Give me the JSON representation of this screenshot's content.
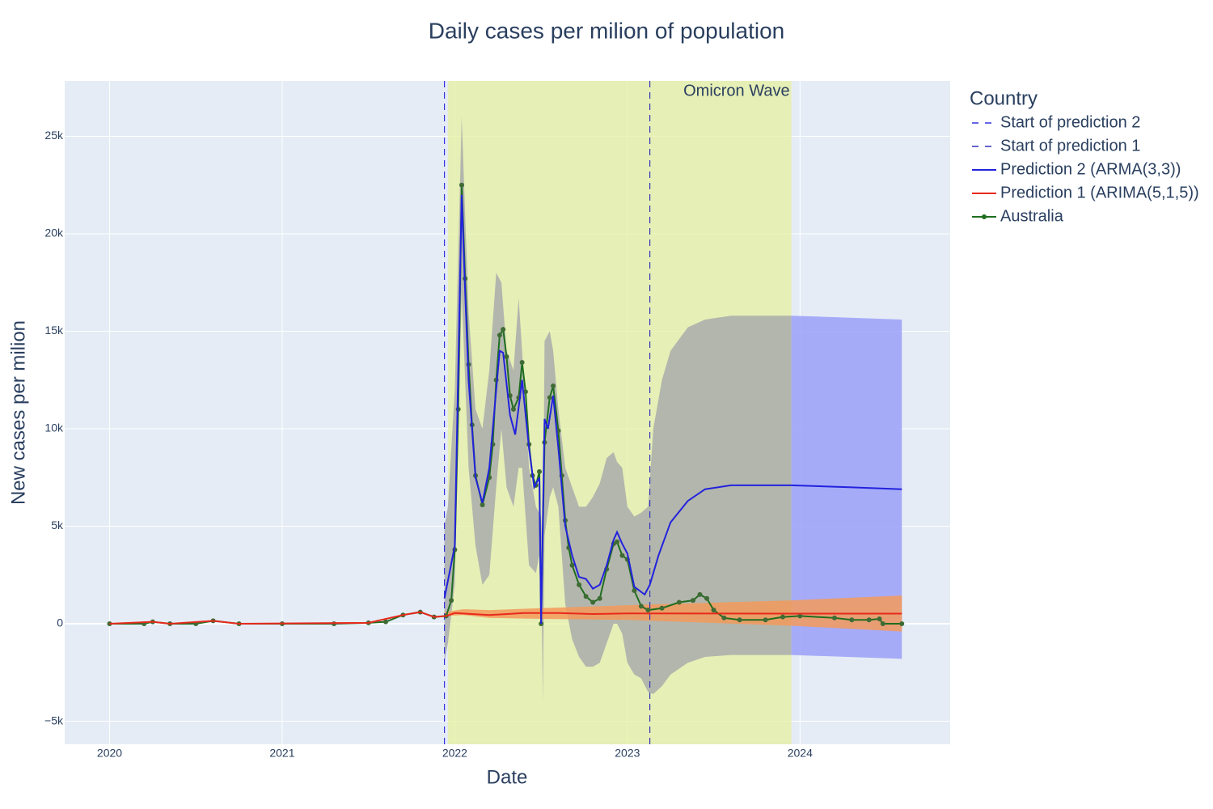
{
  "chart_data": {
    "type": "line",
    "title": "Daily cases per milion of population",
    "x_label": "Date",
    "y_label": "New cases per milion",
    "legend_title": "Country",
    "grid": true,
    "legend_position": "right",
    "xlim": [
      2019.74,
      2024.87
    ],
    "xticks": [
      2020,
      2021,
      2022,
      2023,
      2024
    ],
    "ylim": [
      -6180,
      27840
    ],
    "yticks": [
      {
        "value": -5000,
        "label": "−5k"
      },
      0,
      {
        "value": 5000,
        "label": "5k"
      },
      {
        "value": 10000,
        "label": "10k"
      },
      {
        "value": 15000,
        "label": "15k"
      },
      {
        "value": 20000,
        "label": "20k"
      },
      {
        "value": 25000,
        "label": "25k"
      }
    ],
    "shade": {
      "label": "Omicron Wave",
      "x": [
        2021.96,
        2023.95
      ],
      "color": "#e6f0a0"
    },
    "vlines": [
      {
        "name": "Start of prediction 2",
        "x": 2021.94,
        "color": "#3333dd"
      },
      {
        "name": "Start of prediction 1",
        "x": 2023.13,
        "color": "#3333bb"
      }
    ],
    "series": [
      {
        "name": "Prediction 2 (ARMA(3,3))",
        "color": "#2222dd",
        "x": [
          2021.94,
          2022.0,
          2022.04,
          2022.06,
          2022.08,
          2022.1,
          2022.12,
          2022.16,
          2022.2,
          2022.24,
          2022.26,
          2022.28,
          2022.32,
          2022.35,
          2022.39,
          2022.43,
          2022.46,
          2022.49,
          2022.5,
          2022.52,
          2022.54,
          2022.57,
          2022.6,
          2022.64,
          2022.68,
          2022.72,
          2022.76,
          2022.8,
          2022.84,
          2022.88,
          2022.92,
          2022.94,
          2022.97,
          2023.0,
          2023.04,
          2023.1,
          2023.13,
          2023.18,
          2023.25,
          2023.35,
          2023.45,
          2023.6,
          2023.95,
          2024.3,
          2024.59
        ],
        "values": [
          1300,
          4000,
          22000,
          17000,
          12500,
          10000,
          7500,
          6200,
          8000,
          12000,
          14000,
          13900,
          10700,
          9700,
          12500,
          9000,
          7000,
          7500,
          0,
          10500,
          10000,
          11700,
          9000,
          5000,
          3500,
          2400,
          2300,
          1800,
          2000,
          3000,
          4300,
          4700,
          4100,
          3600,
          1900,
          1500,
          2000,
          3500,
          5200,
          6300,
          6900,
          7100,
          7100,
          7000,
          6900
        ],
        "bands": [
          {
            "color": "#a9abab",
            "x": [
              2021.94,
              2021.96,
              2022.0,
              2022.04,
              2022.08,
              2022.12,
              2022.16,
              2022.2,
              2022.24,
              2022.27,
              2022.3,
              2022.34,
              2022.37,
              2022.39,
              2022.43,
              2022.47,
              2022.5,
              2022.51,
              2022.52,
              2022.55,
              2022.57,
              2022.6,
              2022.64,
              2022.68,
              2022.72,
              2022.76,
              2022.8,
              2022.84,
              2022.88,
              2022.92,
              2022.94,
              2022.97,
              2023.0,
              2023.04,
              2023.08,
              2023.12,
              2023.15,
              2023.2,
              2023.25,
              2023.35,
              2023.45,
              2023.6,
              2023.95
            ],
            "upper": [
              5000,
              6000,
              12000,
              26000,
              16000,
              11000,
              10000,
              13000,
              18000,
              17500,
              14000,
              13000,
              16700,
              14000,
              8000,
              6000,
              5500,
              3000,
              14500,
              15000,
              14000,
              11000,
              8000,
              7000,
              6000,
              6000,
              6500,
              7200,
              8500,
              8800,
              8300,
              8000,
              6000,
              5500,
              5700,
              6000,
              10000,
              12500,
              14000,
              15200,
              15600,
              15800,
              15800
            ],
            "lower": [
              -2000,
              -1000,
              2000,
              17000,
              8000,
              4000,
              2000,
              2500,
              7000,
              10000,
              7000,
              6000,
              8000,
              8000,
              3000,
              2600,
              4000,
              -4000,
              4500,
              6500,
              7000,
              6000,
              1000,
              -800,
              -1700,
              -2200,
              -2200,
              -2000,
              -1000,
              0,
              0,
              -500,
              -2000,
              -2600,
              -2800,
              -3500,
              -3600,
              -3200,
              -2600,
              -2000,
              -1700,
              -1600,
              -1600
            ]
          },
          {
            "color": "#9ba0f8",
            "x": [
              2023.95,
              2024.59
            ],
            "upper": [
              15800,
              15600
            ],
            "lower": [
              -1600,
              -1800
            ]
          }
        ]
      },
      {
        "name": "Prediction 1 (ARIMA(5,1,5))",
        "color": "#e8291c",
        "x": [
          2020.0,
          2020.25,
          2020.35,
          2020.6,
          2020.75,
          2021.5,
          2021.7,
          2021.8,
          2021.88,
          2021.95,
          2022.0,
          2022.2,
          2022.4,
          2022.6,
          2022.8,
          2023.0,
          2023.95,
          2024.59
        ],
        "values": [
          0,
          100,
          0,
          150,
          0,
          50,
          450,
          600,
          350,
          400,
          550,
          450,
          550,
          550,
          500,
          530,
          520,
          520
        ],
        "bands": [
          {
            "color": "#f39a5a",
            "x": [
              2021.94,
              2022.05,
              2022.2,
              2022.5,
              2023.0,
              2023.95,
              2024.59
            ],
            "upper": [
              600,
              750,
              700,
              800,
              950,
              1200,
              1450
            ],
            "lower": [
              400,
              450,
              300,
              250,
              200,
              -100,
              -400
            ]
          }
        ]
      },
      {
        "name": "Australia",
        "color": "#1f6e1f",
        "markers": true,
        "x": [
          2020.0,
          2020.2,
          2020.25,
          2020.35,
          2020.5,
          2020.6,
          2020.75,
          2021.0,
          2021.3,
          2021.5,
          2021.6,
          2021.7,
          2021.8,
          2021.88,
          2021.95,
          2021.98,
          2022.0,
          2022.02,
          2022.04,
          2022.06,
          2022.08,
          2022.1,
          2022.12,
          2022.16,
          2022.2,
          2022.22,
          2022.24,
          2022.26,
          2022.28,
          2022.3,
          2022.32,
          2022.34,
          2022.37,
          2022.39,
          2022.41,
          2022.43,
          2022.45,
          2022.47,
          2022.49,
          2022.5,
          2022.52,
          2022.55,
          2022.57,
          2022.6,
          2022.62,
          2022.64,
          2022.66,
          2022.68,
          2022.72,
          2022.76,
          2022.8,
          2022.84,
          2022.88,
          2022.92,
          2022.94,
          2022.97,
          2023.0,
          2023.04,
          2023.08,
          2023.12,
          2023.2,
          2023.3,
          2023.38,
          2023.42,
          2023.46,
          2023.5,
          2023.56,
          2023.65,
          2023.8,
          2023.9,
          2024.0,
          2024.2,
          2024.3,
          2024.4,
          2024.46,
          2024.48,
          2024.59
        ],
        "values": [
          0,
          0,
          100,
          0,
          0,
          150,
          0,
          0,
          0,
          50,
          100,
          450,
          600,
          350,
          400,
          1200,
          3800,
          11000,
          22500,
          17700,
          13300,
          10200,
          7600,
          6100,
          7500,
          9200,
          12500,
          14800,
          15100,
          13700,
          11700,
          11000,
          11600,
          13400,
          11900,
          9200,
          7600,
          7100,
          7800,
          0,
          9300,
          11600,
          12200,
          9900,
          7600,
          5300,
          3900,
          3000,
          2000,
          1400,
          1100,
          1300,
          2800,
          4100,
          4200,
          3500,
          3300,
          1700,
          900,
          700,
          800,
          1100,
          1200,
          1500,
          1300,
          700,
          300,
          200,
          200,
          350,
          400,
          300,
          200,
          200,
          250,
          0,
          0
        ]
      }
    ]
  }
}
